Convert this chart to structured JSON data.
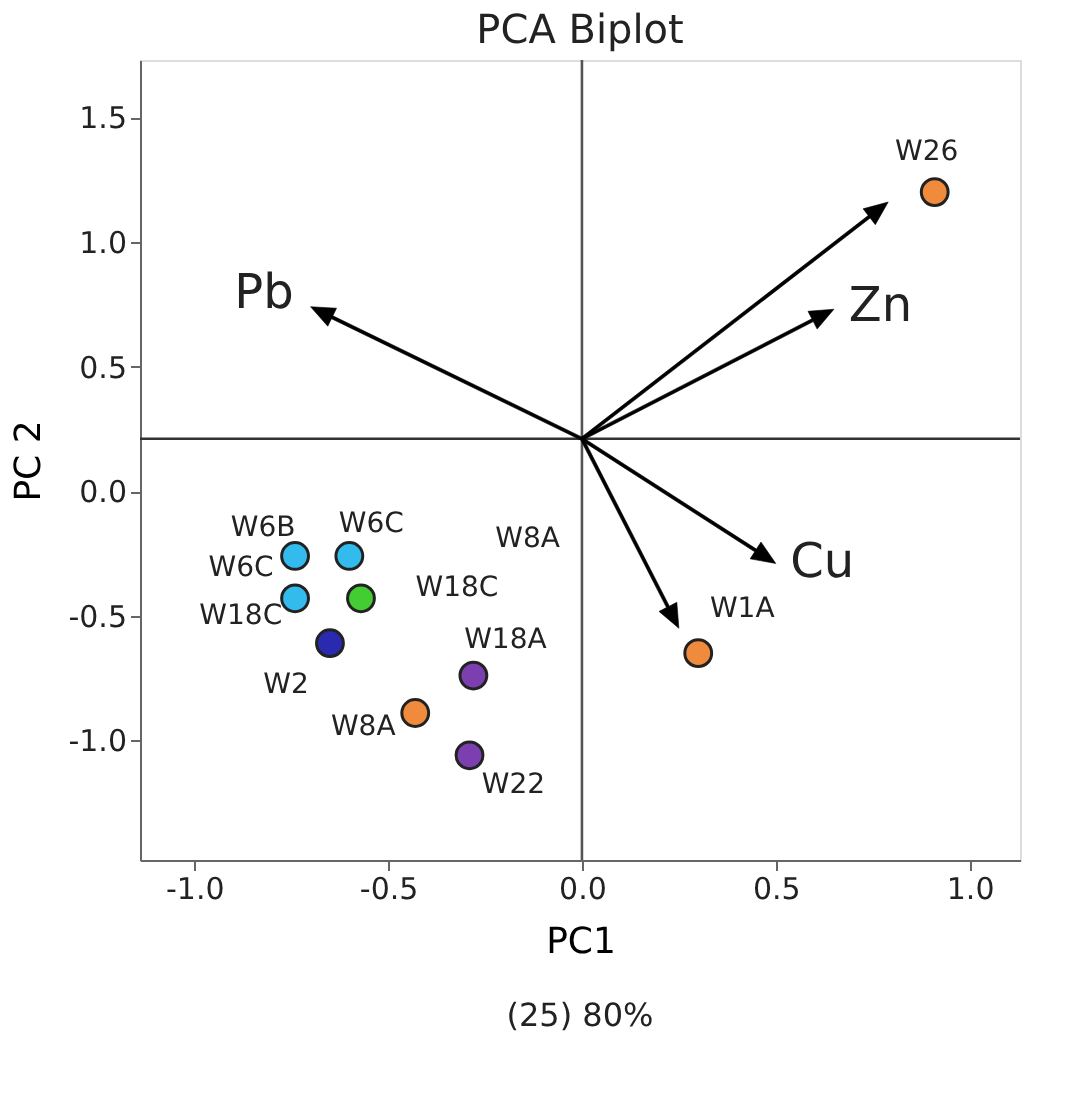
{
  "chart_data": {
    "type": "scatter",
    "title": "PCA Biplot",
    "xlabel": "PC1",
    "ylabel": "PC 2",
    "xlim": [
      -1.14,
      1.13
    ],
    "ylim": [
      -1.48,
      1.73
    ],
    "xticks": [
      {
        "value": -1.0,
        "label": "-1.0"
      },
      {
        "value": -0.5,
        "label": "-0.5"
      },
      {
        "value": 0.0,
        "label": "0.0"
      },
      {
        "value": 0.5,
        "label": "0.5"
      },
      {
        "value": 1.0,
        "label": "1.0"
      }
    ],
    "yticks": [
      {
        "value": -1.0,
        "label": "-1.0"
      },
      {
        "value": -0.5,
        "label": "-0.5"
      },
      {
        "value": 0.0,
        "label": "0.0"
      },
      {
        "value": 0.5,
        "label": "0.5"
      },
      {
        "value": 1.0,
        "label": "1.0"
      },
      {
        "value": 1.5,
        "label": "1.5"
      }
    ],
    "grid": false,
    "series": [
      {
        "name": "W6B",
        "color": "#33bbee",
        "x": [
          -0.74
        ],
        "values": [
          -0.26
        ]
      },
      {
        "name": "W6C",
        "color": "#33bbee",
        "x": [
          -0.6
        ],
        "values": [
          -0.26
        ]
      },
      {
        "name": "W6C",
        "color": "#33bbee",
        "x": [
          -0.74
        ],
        "values": [
          -0.43
        ]
      },
      {
        "name": "W18C",
        "color": "#44cc33",
        "x": [
          -0.57
        ],
        "values": [
          -0.43
        ]
      },
      {
        "name": "W2",
        "color": "#2a2ab0",
        "x": [
          -0.65
        ],
        "values": [
          -0.61
        ]
      },
      {
        "name": "W18A",
        "color": "#7b3fb0",
        "x": [
          -0.28
        ],
        "values": [
          -0.74
        ]
      },
      {
        "name": "W8A",
        "color": "#f08a3c",
        "x": [
          -0.43
        ],
        "values": [
          -0.89
        ]
      },
      {
        "name": "W22",
        "color": "#7b3fb0",
        "x": [
          -0.29
        ],
        "values": [
          -1.06
        ]
      },
      {
        "name": "W1A",
        "color": "#f08a3c",
        "x": [
          0.3
        ],
        "values": [
          -0.65
        ]
      },
      {
        "name": "W26",
        "color": "#f08a3c",
        "x": [
          0.91
        ],
        "values": [
          1.2
        ]
      }
    ],
    "ref_lines": [
      {
        "axis": "x",
        "value": 0.0,
        "color": "#555555"
      },
      {
        "axis": "y",
        "value": 0.21,
        "color": "#333333"
      }
    ],
    "annotations": [
      "W8A",
      "W18C",
      "Pb",
      "Zn",
      "Cu",
      "(25) 80%"
    ]
  }
}
